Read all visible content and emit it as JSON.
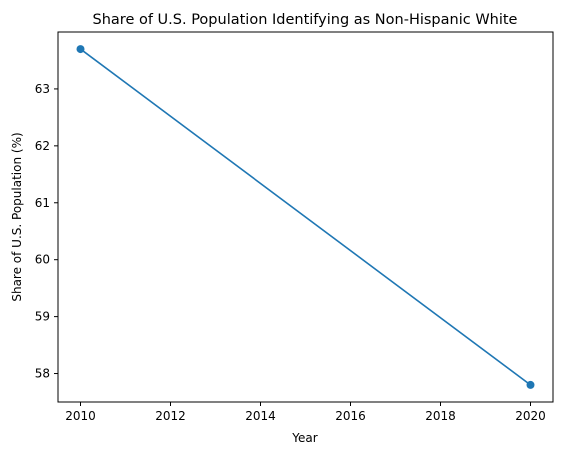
{
  "chart_data": {
    "type": "line",
    "title": "Share of U.S. Population Identifying as Non-Hispanic White",
    "xlabel": "Year",
    "ylabel": "Share of U.S. Population (%)",
    "xlim": [
      2009.5,
      2020.5
    ],
    "ylim": [
      57.5,
      64.0
    ],
    "xticks": [
      2010,
      2012,
      2014,
      2016,
      2018,
      2020
    ],
    "yticks": [
      58,
      59,
      60,
      61,
      62,
      63
    ],
    "grid": false,
    "legend": "none",
    "series": [
      {
        "color": "#1f77b4",
        "marker": "circle",
        "points": [
          {
            "x": 2010,
            "y": 63.7
          },
          {
            "x": 2020,
            "y": 57.8
          }
        ]
      }
    ]
  }
}
